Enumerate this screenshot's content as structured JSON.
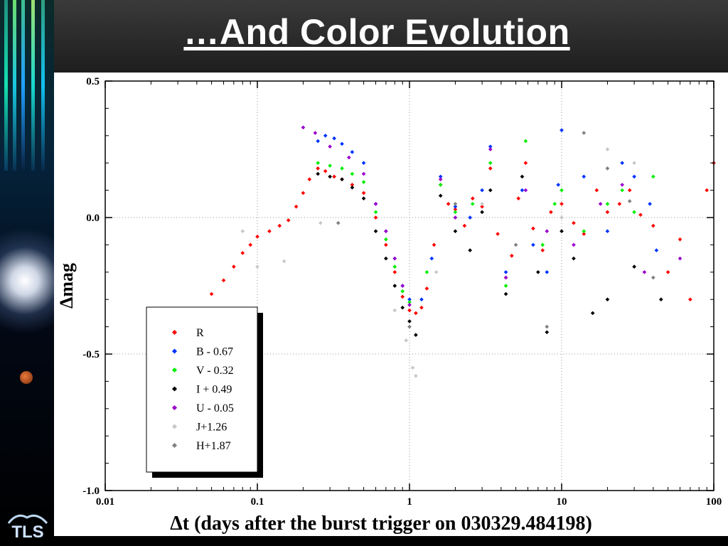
{
  "slide": {
    "title": "…And Color Evolution",
    "logo_text": "TLS"
  },
  "chart_data": {
    "type": "scatter",
    "xscale": "log",
    "xlim": [
      0.01,
      100
    ],
    "ylim": [
      -1.0,
      0.5
    ],
    "xticks": [
      "0.01",
      "0.1",
      "1",
      "10",
      "100"
    ],
    "yticks": [
      "0.5",
      "0.0",
      "-0.5",
      "-1.0"
    ],
    "xlabel": "Δt (days after the burst trigger on 030329.484198)",
    "ylabel": "Δmag",
    "grid": true,
    "legend_position": "bottom-left",
    "series": [
      {
        "name": "R",
        "color": "#ff0000",
        "points": [
          [
            0.05,
            -0.28
          ],
          [
            0.06,
            -0.23
          ],
          [
            0.07,
            -0.18
          ],
          [
            0.08,
            -0.13
          ],
          [
            0.09,
            -0.1
          ],
          [
            0.1,
            -0.07
          ],
          [
            0.12,
            -0.05
          ],
          [
            0.14,
            -0.03
          ],
          [
            0.16,
            -0.01
          ],
          [
            0.18,
            0.04
          ],
          [
            0.2,
            0.09
          ],
          [
            0.22,
            0.14
          ],
          [
            0.25,
            0.18
          ],
          [
            0.28,
            0.17
          ],
          [
            0.32,
            0.15
          ],
          [
            0.36,
            0.14
          ],
          [
            0.42,
            0.12
          ],
          [
            0.5,
            0.09
          ],
          [
            0.6,
            0.0
          ],
          [
            0.7,
            -0.1
          ],
          [
            0.8,
            -0.2
          ],
          [
            0.9,
            -0.29
          ],
          [
            1.0,
            -0.34
          ],
          [
            1.1,
            -0.35
          ],
          [
            1.2,
            -0.33
          ],
          [
            1.3,
            -0.26
          ],
          [
            1.45,
            -0.1
          ],
          [
            1.6,
            0.12
          ],
          [
            1.8,
            0.05
          ],
          [
            2.0,
            0.03
          ],
          [
            2.3,
            -0.03
          ],
          [
            2.6,
            0.07
          ],
          [
            3.0,
            0.04
          ],
          [
            3.4,
            0.18
          ],
          [
            3.8,
            -0.06
          ],
          [
            4.3,
            -0.22
          ],
          [
            4.7,
            -0.14
          ],
          [
            5.2,
            0.07
          ],
          [
            5.8,
            0.2
          ],
          [
            6.5,
            -0.04
          ],
          [
            7.5,
            -0.12
          ],
          [
            8.5,
            0.02
          ],
          [
            10,
            0.05
          ],
          [
            12,
            -0.02
          ],
          [
            14,
            -0.06
          ],
          [
            17,
            0.1
          ],
          [
            20,
            0.02
          ],
          [
            24,
            0.05
          ],
          [
            28,
            0.1
          ],
          [
            33,
            0.01
          ],
          [
            40,
            -0.03
          ],
          [
            50,
            -0.2
          ],
          [
            60,
            -0.08
          ],
          [
            70,
            -0.3
          ],
          [
            90,
            0.1
          ],
          [
            100,
            0.2
          ]
        ]
      },
      {
        "name": "B - 0.67",
        "color": "#0033ff",
        "points": [
          [
            0.25,
            0.28
          ],
          [
            0.28,
            0.3
          ],
          [
            0.32,
            0.29
          ],
          [
            0.36,
            0.27
          ],
          [
            0.42,
            0.24
          ],
          [
            0.5,
            0.2
          ],
          [
            0.6,
            0.05
          ],
          [
            0.7,
            -0.05
          ],
          [
            0.8,
            -0.15
          ],
          [
            0.9,
            -0.25
          ],
          [
            1.0,
            -0.3
          ],
          [
            1.2,
            -0.3
          ],
          [
            1.4,
            -0.15
          ],
          [
            1.6,
            0.15
          ],
          [
            2.0,
            0.04
          ],
          [
            2.5,
            0.0
          ],
          [
            3.0,
            0.1
          ],
          [
            3.4,
            0.26
          ],
          [
            4.3,
            -0.2
          ],
          [
            5.5,
            0.1
          ],
          [
            6.5,
            -0.1
          ],
          [
            8.0,
            -0.2
          ],
          [
            9.5,
            0.12
          ],
          [
            10,
            0.32
          ],
          [
            14,
            0.15
          ],
          [
            20,
            -0.05
          ],
          [
            25,
            0.2
          ],
          [
            30,
            0.15
          ],
          [
            38,
            0.05
          ],
          [
            42,
            -0.12
          ]
        ]
      },
      {
        "name": "V - 0.32",
        "color": "#00ee00",
        "points": [
          [
            0.25,
            0.2
          ],
          [
            0.3,
            0.19
          ],
          [
            0.36,
            0.18
          ],
          [
            0.42,
            0.16
          ],
          [
            0.5,
            0.13
          ],
          [
            0.6,
            0.02
          ],
          [
            0.7,
            -0.08
          ],
          [
            0.8,
            -0.18
          ],
          [
            0.9,
            -0.27
          ],
          [
            1.0,
            -0.31
          ],
          [
            1.3,
            -0.2
          ],
          [
            1.6,
            0.12
          ],
          [
            2.0,
            0.02
          ],
          [
            2.6,
            0.05
          ],
          [
            3.4,
            0.2
          ],
          [
            4.3,
            -0.25
          ],
          [
            5.8,
            0.28
          ],
          [
            7.5,
            -0.1
          ],
          [
            9.0,
            0.05
          ],
          [
            10,
            0.1
          ],
          [
            14,
            -0.05
          ],
          [
            20,
            0.05
          ],
          [
            25,
            0.1
          ],
          [
            30,
            0.02
          ],
          [
            40,
            0.15
          ]
        ]
      },
      {
        "name": "I + 0.49",
        "color": "#000000",
        "points": [
          [
            0.25,
            0.16
          ],
          [
            0.3,
            0.15
          ],
          [
            0.36,
            0.14
          ],
          [
            0.42,
            0.11
          ],
          [
            0.5,
            0.07
          ],
          [
            0.6,
            -0.05
          ],
          [
            0.7,
            -0.15
          ],
          [
            0.8,
            -0.25
          ],
          [
            0.9,
            -0.33
          ],
          [
            1.0,
            -0.38
          ],
          [
            1.1,
            -0.43
          ],
          [
            1.6,
            0.08
          ],
          [
            2.0,
            -0.05
          ],
          [
            2.5,
            -0.12
          ],
          [
            3.0,
            0.02
          ],
          [
            3.4,
            0.1
          ],
          [
            4.3,
            -0.28
          ],
          [
            5.5,
            0.15
          ],
          [
            7.0,
            -0.2
          ],
          [
            8.0,
            -0.42
          ],
          [
            10,
            -0.05
          ],
          [
            12,
            -0.15
          ],
          [
            16,
            -0.35
          ],
          [
            20,
            -0.3
          ],
          [
            30,
            -0.18
          ],
          [
            45,
            -0.3
          ]
        ]
      },
      {
        "name": "U - 0.05",
        "color": "#9900cc",
        "points": [
          [
            0.2,
            0.33
          ],
          [
            0.24,
            0.31
          ],
          [
            0.3,
            0.26
          ],
          [
            0.4,
            0.22
          ],
          [
            0.5,
            0.16
          ],
          [
            0.6,
            0.05
          ],
          [
            0.7,
            -0.05
          ],
          [
            0.8,
            -0.15
          ],
          [
            0.9,
            -0.25
          ],
          [
            1.0,
            -0.32
          ],
          [
            1.6,
            0.14
          ],
          [
            2.0,
            0.0
          ],
          [
            3.4,
            0.25
          ],
          [
            4.3,
            -0.22
          ],
          [
            5.8,
            0.1
          ],
          [
            8.0,
            -0.05
          ],
          [
            12,
            -0.1
          ],
          [
            18,
            0.05
          ],
          [
            25,
            0.12
          ],
          [
            35,
            -0.2
          ],
          [
            60,
            -0.15
          ]
        ]
      },
      {
        "name": "J+1.26",
        "color": "#c8c8c8",
        "points": [
          [
            0.08,
            -0.05
          ],
          [
            0.1,
            -0.18
          ],
          [
            0.15,
            -0.16
          ],
          [
            0.26,
            -0.02
          ],
          [
            0.8,
            -0.34
          ],
          [
            0.95,
            -0.45
          ],
          [
            1.05,
            -0.55
          ],
          [
            1.1,
            -0.58
          ],
          [
            1.5,
            -0.2
          ],
          [
            3.0,
            0.05
          ],
          [
            10,
            0.0
          ],
          [
            20,
            0.25
          ],
          [
            30,
            0.2
          ]
        ]
      },
      {
        "name": "H+1.87",
        "color": "#808080",
        "points": [
          [
            0.34,
            -0.02
          ],
          [
            1.0,
            -0.4
          ],
          [
            2.0,
            0.05
          ],
          [
            5.0,
            -0.1
          ],
          [
            8.0,
            -0.4
          ],
          [
            14,
            0.31
          ],
          [
            20,
            0.18
          ],
          [
            28,
            0.06
          ],
          [
            40,
            -0.22
          ]
        ]
      }
    ]
  }
}
